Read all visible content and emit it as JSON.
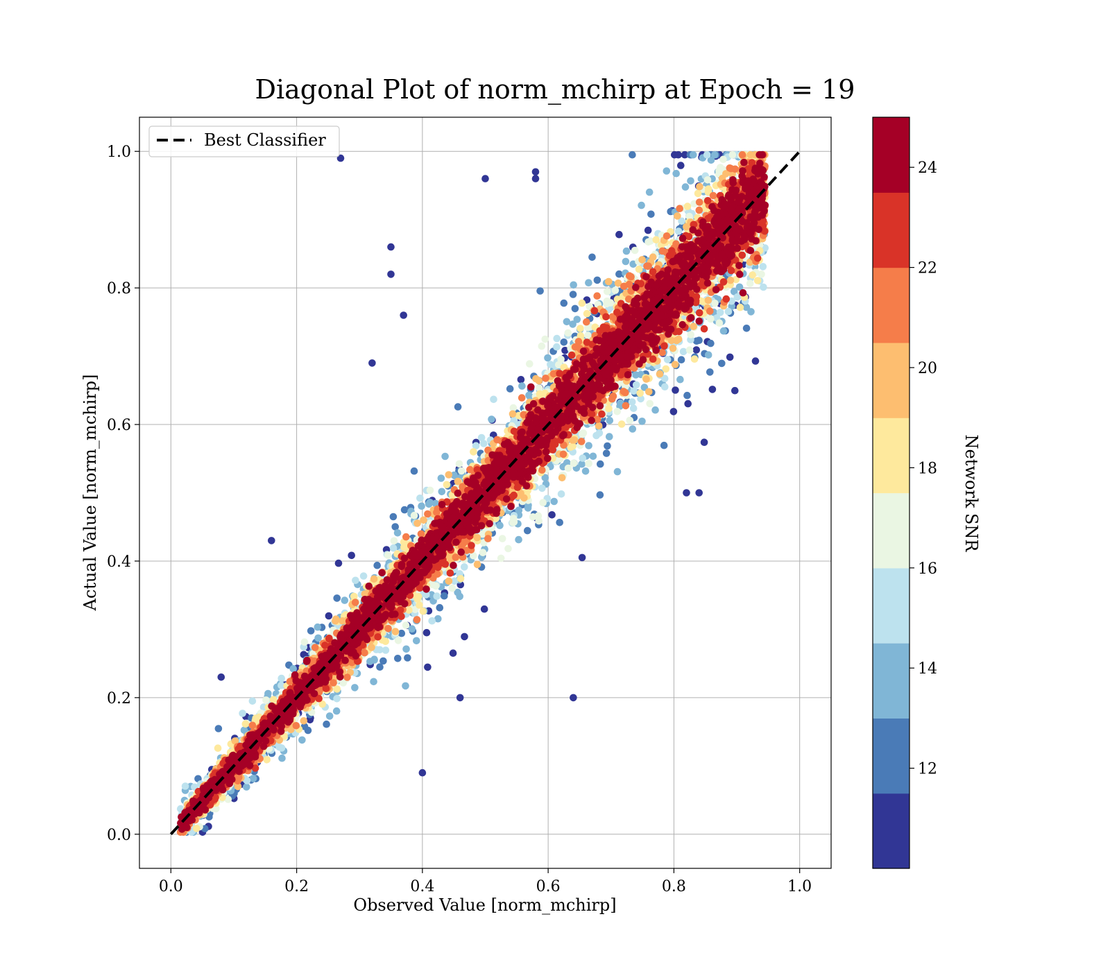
{
  "chart_data": {
    "type": "scatter",
    "title": "Diagonal Plot of norm_mchirp at Epoch = 19",
    "xlabel": "Observed Value [norm_mchirp]",
    "ylabel": "Actual Value [norm_mchirp]",
    "xlim": [
      -0.05,
      1.05
    ],
    "ylim": [
      -0.05,
      1.05
    ],
    "xticks": [
      "0.0",
      "0.2",
      "0.4",
      "0.6",
      "0.8",
      "1.0"
    ],
    "yticks": [
      "0.0",
      "0.2",
      "0.4",
      "0.6",
      "0.8",
      "1.0"
    ],
    "grid": true,
    "legend": {
      "placement": "upper-left",
      "entries": [
        "Best Classifier"
      ]
    },
    "reference_line": {
      "name": "Best Classifier",
      "x": [
        0,
        1
      ],
      "y": [
        0,
        1
      ],
      "style": "dashed",
      "color": "#000000"
    },
    "colorbar": {
      "label": "Network SNR",
      "range": [
        10,
        25
      ],
      "ticks": [
        "12",
        "14",
        "16",
        "18",
        "20",
        "22",
        "24"
      ],
      "tick_values": [
        12,
        14,
        16,
        18,
        20,
        22,
        24
      ],
      "colors": [
        "#313695",
        "#4a7bb7",
        "#80b6d6",
        "#bde2ee",
        "#eaf6e3",
        "#fee99d",
        "#fdbe70",
        "#f57d4a",
        "#d93328",
        "#a50026"
      ]
    },
    "points": {
      "approximate_count": 12000,
      "x_range": [
        0.0,
        1.0
      ],
      "y_range": [
        0.0,
        1.0
      ],
      "trend": "clustered around y = x; high SNR points tight to the diagonal, low SNR points widely scattered",
      "notable_outliers": [
        {
          "x": 0.27,
          "y": 0.99
        },
        {
          "x": 0.5,
          "y": 0.96
        },
        {
          "x": 0.58,
          "y": 0.96
        },
        {
          "x": 0.58,
          "y": 0.97
        },
        {
          "x": 0.35,
          "y": 0.86
        },
        {
          "x": 0.35,
          "y": 0.82
        },
        {
          "x": 0.37,
          "y": 0.76
        },
        {
          "x": 0.16,
          "y": 0.43
        },
        {
          "x": 0.08,
          "y": 0.23
        },
        {
          "x": 0.64,
          "y": 0.2
        },
        {
          "x": 0.46,
          "y": 0.2
        },
        {
          "x": 0.84,
          "y": 0.5
        },
        {
          "x": 0.82,
          "y": 0.5
        },
        {
          "x": 0.32,
          "y": 0.69
        },
        {
          "x": 0.4,
          "y": 0.09
        }
      ]
    }
  }
}
